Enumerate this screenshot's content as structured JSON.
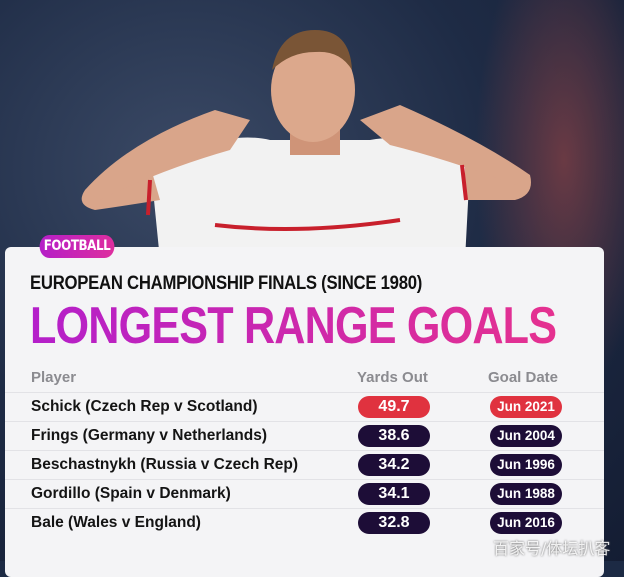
{
  "badge": "FOOTBALL",
  "subtitle": "EUROPEAN CHAMPIONSHIP FINALS (SINCE 1980)",
  "title": "LONGEST RANGE GOALS",
  "columns": {
    "player": "Player",
    "yards": "Yards Out",
    "date": "Goal Date"
  },
  "rows": [
    {
      "player": "Schick (Czech Rep v Scotland)",
      "yards": "49.7",
      "date": "Jun 2021",
      "highlight": true
    },
    {
      "player": "Frings (Germany v Netherlands)",
      "yards": "38.6",
      "date": "Jun 2004"
    },
    {
      "player": "Beschastnykh (Russia v Czech Rep)",
      "yards": "34.2",
      "date": "Jun 1996"
    },
    {
      "player": "Gordillo (Spain v Denmark)",
      "yards": "34.1",
      "date": "Jun 1988"
    },
    {
      "player": "Bale (Wales v England)",
      "yards": "32.8",
      "date": "Jun 2016"
    }
  ],
  "watermark": "百家号/体坛扒客",
  "colors": {
    "highlight": "#e0323f",
    "pill": "#1d0d37",
    "accent_start": "#b41fca",
    "accent_end": "#e5318f"
  }
}
